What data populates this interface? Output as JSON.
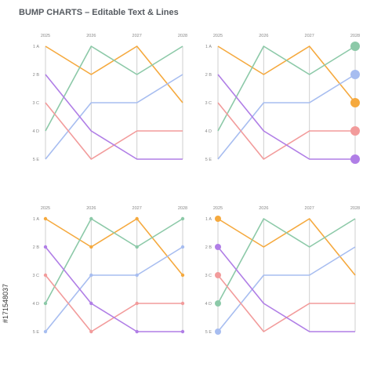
{
  "title": "BUMP CHARTS – Editable Text & Lines",
  "side_id": "#171548037",
  "colors": {
    "grid": "#cfcfcf",
    "text": "#888888",
    "green": "#8cc9a8",
    "orange": "#f5a93e",
    "blue": "#a7bdf0",
    "red": "#f29b9b",
    "purple": "#b07ee6"
  },
  "chart_data": [
    {
      "type": "line",
      "variant": "bump",
      "marker_style": "none",
      "x": [
        "2025",
        "2026",
        "2027",
        "2028"
      ],
      "y_ticks": [
        "1 A",
        "2 B",
        "3 C",
        "4 D",
        "5 E"
      ],
      "ylim": [
        1,
        5
      ],
      "y_inverted": true,
      "grid": "vertical",
      "series": [
        {
          "color": "#f5a93e",
          "values": [
            1,
            2,
            1,
            3
          ]
        },
        {
          "color": "#8cc9a8",
          "values": [
            4,
            1,
            2,
            1
          ]
        },
        {
          "color": "#a7bdf0",
          "values": [
            5,
            3,
            3,
            2
          ]
        },
        {
          "color": "#f29b9b",
          "values": [
            3,
            5,
            4,
            4
          ]
        },
        {
          "color": "#b07ee6",
          "values": [
            2,
            4,
            5,
            5
          ]
        }
      ]
    },
    {
      "type": "line",
      "variant": "bump",
      "marker_style": "end-large",
      "x": [
        "2025",
        "2026",
        "2027",
        "2028"
      ],
      "y_ticks": [
        "1 A",
        "2 B",
        "3 C",
        "4 D",
        "5 E"
      ],
      "ylim": [
        1,
        5
      ],
      "y_inverted": true,
      "grid": "vertical",
      "series": [
        {
          "color": "#f5a93e",
          "values": [
            1,
            2,
            1,
            3
          ]
        },
        {
          "color": "#8cc9a8",
          "values": [
            4,
            1,
            2,
            1
          ]
        },
        {
          "color": "#a7bdf0",
          "values": [
            5,
            3,
            3,
            2
          ]
        },
        {
          "color": "#f29b9b",
          "values": [
            3,
            5,
            4,
            4
          ]
        },
        {
          "color": "#b07ee6",
          "values": [
            2,
            4,
            5,
            5
          ]
        }
      ]
    },
    {
      "type": "line",
      "variant": "bump",
      "marker_style": "all-small",
      "x": [
        "2025",
        "2026",
        "2027",
        "2028"
      ],
      "y_ticks": [
        "1 A",
        "2 B",
        "3 C",
        "4 D",
        "5 E"
      ],
      "ylim": [
        1,
        5
      ],
      "y_inverted": true,
      "grid": "vertical",
      "series": [
        {
          "color": "#f5a93e",
          "values": [
            1,
            2,
            1,
            3
          ]
        },
        {
          "color": "#8cc9a8",
          "values": [
            4,
            1,
            2,
            1
          ]
        },
        {
          "color": "#a7bdf0",
          "values": [
            5,
            3,
            3,
            2
          ]
        },
        {
          "color": "#f29b9b",
          "values": [
            3,
            5,
            4,
            4
          ]
        },
        {
          "color": "#b07ee6",
          "values": [
            2,
            4,
            5,
            5
          ]
        }
      ]
    },
    {
      "type": "line",
      "variant": "bump",
      "marker_style": "start-large",
      "x": [
        "2025",
        "2026",
        "2027",
        "2028"
      ],
      "y_ticks": [
        "1 A",
        "2 B",
        "3 C",
        "4 D",
        "5 E"
      ],
      "ylim": [
        1,
        5
      ],
      "y_inverted": true,
      "grid": "vertical",
      "series": [
        {
          "color": "#f5a93e",
          "values": [
            1,
            2,
            1,
            3
          ]
        },
        {
          "color": "#8cc9a8",
          "values": [
            4,
            1,
            2,
            1
          ]
        },
        {
          "color": "#a7bdf0",
          "values": [
            5,
            3,
            3,
            2
          ]
        },
        {
          "color": "#f29b9b",
          "values": [
            3,
            5,
            4,
            4
          ]
        },
        {
          "color": "#b07ee6",
          "values": [
            2,
            4,
            5,
            5
          ]
        }
      ]
    }
  ]
}
